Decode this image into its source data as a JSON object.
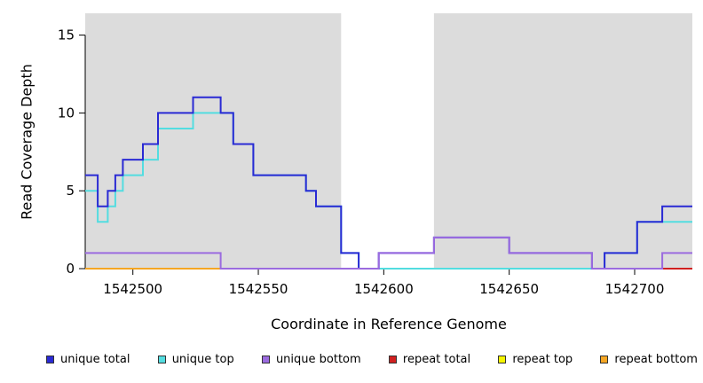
{
  "chart_data": {
    "type": "line",
    "subtype": "step",
    "title": "",
    "xlabel": "Coordinate in Reference Genome",
    "ylabel": "Read Coverage Depth",
    "xlim": [
      1542481,
      1542723
    ],
    "ylim": [
      0,
      16.4
    ],
    "x_ticks": [
      1542500,
      1542550,
      1542600,
      1542650,
      1542700
    ],
    "y_ticks": [
      0,
      5,
      10,
      15
    ],
    "grid": false,
    "plot_bg": "#DCDCDC",
    "uncovered_region": {
      "x0": 1542583,
      "x1": 1542620,
      "color": "#FFFFFF"
    },
    "series": [
      {
        "name": "repeat top",
        "color": "#F5F500",
        "steps": [
          [
            1542481,
            0
          ],
          [
            1542723,
            0
          ]
        ]
      },
      {
        "name": "repeat total",
        "color": "#D02020",
        "steps": [
          [
            1542481,
            0
          ],
          [
            1542723,
            0
          ]
        ]
      },
      {
        "name": "repeat bottom",
        "color": "#F5A623",
        "steps": [
          [
            1542481,
            0
          ],
          [
            1542536,
            0
          ]
        ]
      },
      {
        "name": "unique top",
        "color": "#53DDE0",
        "steps": [
          [
            1542481,
            5
          ],
          [
            1542486,
            3
          ],
          [
            1542490,
            4
          ],
          [
            1542493,
            5
          ],
          [
            1542496,
            6
          ],
          [
            1542504,
            7
          ],
          [
            1542510,
            9
          ],
          [
            1542524,
            10
          ],
          [
            1542540,
            8
          ],
          [
            1542548,
            6
          ],
          [
            1542569,
            5
          ],
          [
            1542573,
            4
          ],
          [
            1542583,
            1
          ],
          [
            1542590,
            0
          ],
          [
            1542683,
            0
          ],
          [
            1542688,
            1
          ],
          [
            1542701,
            3
          ],
          [
            1542723,
            3
          ]
        ]
      },
      {
        "name": "unique total",
        "color": "#2A2AD4",
        "steps": [
          [
            1542481,
            6
          ],
          [
            1542486,
            4
          ],
          [
            1542490,
            5
          ],
          [
            1542493,
            6
          ],
          [
            1542496,
            7
          ],
          [
            1542504,
            8
          ],
          [
            1542510,
            10
          ],
          [
            1542524,
            11
          ],
          [
            1542535,
            10
          ],
          [
            1542540,
            8
          ],
          [
            1542548,
            6
          ],
          [
            1542569,
            5
          ],
          [
            1542573,
            4
          ],
          [
            1542583,
            1
          ],
          [
            1542590,
            0
          ],
          [
            1542598,
            1
          ],
          [
            1542620,
            2
          ],
          [
            1542650,
            1
          ],
          [
            1542683,
            0
          ],
          [
            1542688,
            1
          ],
          [
            1542701,
            3
          ],
          [
            1542711,
            4
          ],
          [
            1542723,
            4
          ]
        ]
      },
      {
        "name": "unique bottom",
        "color": "#9B6BDF",
        "steps": [
          [
            1542481,
            1
          ],
          [
            1542535,
            0
          ],
          [
            1542598,
            1
          ],
          [
            1542620,
            2
          ],
          [
            1542650,
            1
          ],
          [
            1542683,
            0
          ],
          [
            1542711,
            1
          ],
          [
            1542723,
            1
          ]
        ]
      }
    ],
    "legend": [
      {
        "label": "unique total",
        "color": "#2A2AD4"
      },
      {
        "label": "unique top",
        "color": "#53DDE0"
      },
      {
        "label": "unique bottom",
        "color": "#9B6BDF"
      },
      {
        "label": "repeat total",
        "color": "#D02020"
      },
      {
        "label": "repeat top",
        "color": "#F5F500"
      },
      {
        "label": "repeat bottom",
        "color": "#F5A623"
      }
    ],
    "legend_position": "bottom"
  }
}
